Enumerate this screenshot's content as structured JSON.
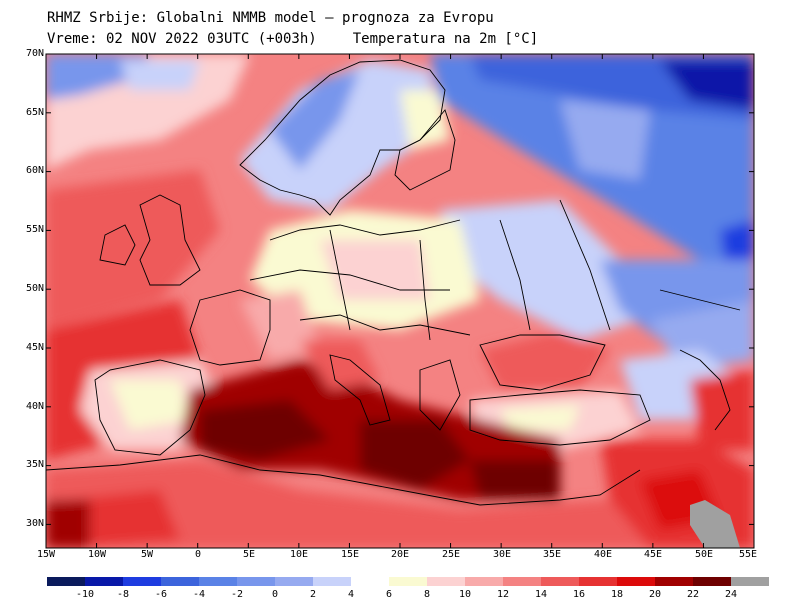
{
  "header": {
    "line1": "RHMZ Srbije: Globalni NMMB model – prognoza za Evropu",
    "line2_time": "Vreme: 02 NOV 2022 03UTC (+003h)",
    "line2_field": "Temperatura na 2m [°C]"
  },
  "axes": {
    "lat_labels": [
      "70N",
      "65N",
      "60N",
      "55N",
      "50N",
      "45N",
      "40N",
      "35N",
      "30N"
    ],
    "lon_labels": [
      "15W",
      "10W",
      "5W",
      "0",
      "5E",
      "10E",
      "15E",
      "20E",
      "25E",
      "30E",
      "35E",
      "40E",
      "45E",
      "50E",
      "55E"
    ]
  },
  "legend": {
    "ticks": [
      "-10",
      "-8",
      "-6",
      "-4",
      "-2",
      "0",
      "2",
      "4",
      "6",
      "8",
      "10",
      "12",
      "14",
      "16",
      "18",
      "20",
      "22",
      "24"
    ],
    "colors": [
      "#0a1a5c",
      "#0818a8",
      "#1e3ce0",
      "#3c64dc",
      "#5a82e6",
      "#7896ec",
      "#96aaf0",
      "#c8d2fa",
      "#ffffff",
      "#fafad2",
      "#fcd2d2",
      "#f8aaaa",
      "#f48282",
      "#ee5a5a",
      "#e63232",
      "#dc0a0a",
      "#a00000",
      "#6e0000",
      "#a0a0a0"
    ]
  }
}
